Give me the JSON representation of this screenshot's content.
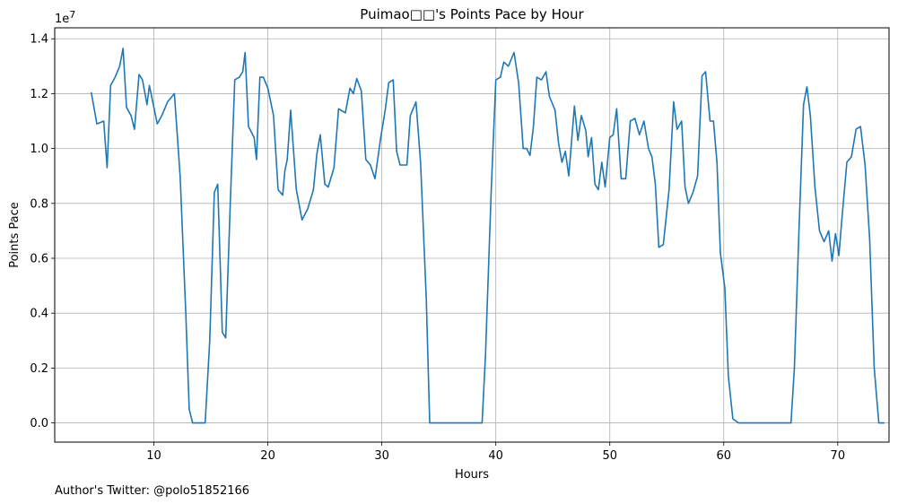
{
  "chart_data": {
    "type": "line",
    "title": "Puimao□□'s Points Pace by Hour",
    "xlabel": "Hours",
    "ylabel": "Points Pace",
    "y_offset_text": "1e7",
    "footnote": "Author's Twitter: @polo51852166",
    "xlim": [
      1.3,
      74.5
    ],
    "ylim": [
      -0.07,
      1.44
    ],
    "x_ticks": [
      10,
      20,
      30,
      40,
      50,
      60,
      70
    ],
    "y_ticks": [
      0.0,
      0.2,
      0.4,
      0.6,
      0.8,
      1.0,
      1.2,
      1.4
    ],
    "y_tick_labels": [
      "0.0",
      "0.2",
      "0.4",
      "0.6",
      "0.8",
      "1.0",
      "1.2",
      "1.4"
    ],
    "grid": true,
    "line_color": "#1f77b4",
    "series": [
      {
        "points": [
          [
            4.5,
            1.205
          ],
          [
            5.0,
            1.09
          ],
          [
            5.6,
            1.1
          ],
          [
            5.9,
            0.93
          ],
          [
            6.2,
            1.23
          ],
          [
            6.6,
            1.26
          ],
          [
            7.0,
            1.3
          ],
          [
            7.3,
            1.365
          ],
          [
            7.6,
            1.15
          ],
          [
            8.0,
            1.12
          ],
          [
            8.3,
            1.07
          ],
          [
            8.7,
            1.27
          ],
          [
            9.0,
            1.25
          ],
          [
            9.4,
            1.16
          ],
          [
            9.6,
            1.23
          ],
          [
            10.0,
            1.15
          ],
          [
            10.3,
            1.09
          ],
          [
            10.7,
            1.12
          ],
          [
            11.2,
            1.17
          ],
          [
            11.8,
            1.2
          ],
          [
            12.3,
            0.9
          ],
          [
            12.8,
            0.4
          ],
          [
            13.1,
            0.05
          ],
          [
            13.4,
            0.0
          ],
          [
            14.5,
            0.0
          ],
          [
            14.9,
            0.3
          ],
          [
            15.3,
            0.84
          ],
          [
            15.6,
            0.87
          ],
          [
            16.0,
            0.33
          ],
          [
            16.3,
            0.31
          ],
          [
            16.7,
            0.8
          ],
          [
            17.1,
            1.25
          ],
          [
            17.5,
            1.26
          ],
          [
            17.8,
            1.28
          ],
          [
            18.0,
            1.35
          ],
          [
            18.3,
            1.08
          ],
          [
            18.8,
            1.04
          ],
          [
            19.0,
            0.96
          ],
          [
            19.3,
            1.26
          ],
          [
            19.6,
            1.26
          ],
          [
            20.0,
            1.22
          ],
          [
            20.5,
            1.12
          ],
          [
            20.9,
            0.85
          ],
          [
            21.3,
            0.83
          ],
          [
            21.5,
            0.92
          ],
          [
            21.7,
            0.96
          ],
          [
            22.0,
            1.14
          ],
          [
            22.5,
            0.85
          ],
          [
            23.0,
            0.74
          ],
          [
            23.5,
            0.78
          ],
          [
            24.0,
            0.85
          ],
          [
            24.3,
            0.98
          ],
          [
            24.6,
            1.05
          ],
          [
            25.0,
            0.87
          ],
          [
            25.3,
            0.86
          ],
          [
            25.8,
            0.93
          ],
          [
            26.2,
            1.145
          ],
          [
            26.8,
            1.13
          ],
          [
            27.2,
            1.22
          ],
          [
            27.5,
            1.2
          ],
          [
            27.8,
            1.255
          ],
          [
            28.2,
            1.21
          ],
          [
            28.6,
            0.96
          ],
          [
            29.0,
            0.94
          ],
          [
            29.4,
            0.89
          ],
          [
            29.9,
            1.04
          ],
          [
            30.3,
            1.14
          ],
          [
            30.6,
            1.24
          ],
          [
            31.0,
            1.25
          ],
          [
            31.3,
            0.99
          ],
          [
            31.6,
            0.94
          ],
          [
            32.2,
            0.94
          ],
          [
            32.5,
            1.12
          ],
          [
            33.0,
            1.17
          ],
          [
            33.4,
            0.95
          ],
          [
            33.9,
            0.45
          ],
          [
            34.2,
            0.0
          ],
          [
            38.8,
            0.0
          ],
          [
            39.1,
            0.25
          ],
          [
            39.6,
            0.85
          ],
          [
            40.0,
            1.25
          ],
          [
            40.4,
            1.26
          ],
          [
            40.7,
            1.315
          ],
          [
            41.1,
            1.3
          ],
          [
            41.6,
            1.35
          ],
          [
            42.0,
            1.24
          ],
          [
            42.4,
            1.0
          ],
          [
            42.7,
            1.0
          ],
          [
            43.0,
            0.975
          ],
          [
            43.3,
            1.08
          ],
          [
            43.6,
            1.26
          ],
          [
            44.0,
            1.25
          ],
          [
            44.4,
            1.28
          ],
          [
            44.7,
            1.19
          ],
          [
            45.2,
            1.14
          ],
          [
            45.5,
            1.02
          ],
          [
            45.8,
            0.95
          ],
          [
            46.1,
            0.99
          ],
          [
            46.4,
            0.9
          ],
          [
            46.9,
            1.155
          ],
          [
            47.2,
            1.03
          ],
          [
            47.5,
            1.12
          ],
          [
            47.9,
            1.065
          ],
          [
            48.1,
            0.97
          ],
          [
            48.4,
            1.04
          ],
          [
            48.7,
            0.87
          ],
          [
            49.0,
            0.85
          ],
          [
            49.3,
            0.95
          ],
          [
            49.6,
            0.86
          ],
          [
            50.0,
            1.04
          ],
          [
            50.3,
            1.05
          ],
          [
            50.6,
            1.145
          ],
          [
            51.0,
            0.89
          ],
          [
            51.4,
            0.89
          ],
          [
            51.8,
            1.1
          ],
          [
            52.2,
            1.11
          ],
          [
            52.6,
            1.05
          ],
          [
            53.0,
            1.1
          ],
          [
            53.4,
            1.0
          ],
          [
            53.7,
            0.97
          ],
          [
            54.0,
            0.87
          ],
          [
            54.3,
            0.64
          ],
          [
            54.7,
            0.65
          ],
          [
            55.2,
            0.85
          ],
          [
            55.6,
            1.17
          ],
          [
            55.9,
            1.07
          ],
          [
            56.3,
            1.1
          ],
          [
            56.6,
            0.86
          ],
          [
            56.9,
            0.8
          ],
          [
            57.3,
            0.84
          ],
          [
            57.7,
            0.9
          ],
          [
            58.1,
            1.265
          ],
          [
            58.4,
            1.28
          ],
          [
            58.8,
            1.1
          ],
          [
            59.1,
            1.1
          ],
          [
            59.4,
            0.95
          ],
          [
            59.7,
            0.62
          ],
          [
            60.1,
            0.49
          ],
          [
            60.4,
            0.17
          ],
          [
            60.8,
            0.015
          ],
          [
            61.3,
            0.0
          ],
          [
            65.9,
            0.0
          ],
          [
            66.2,
            0.2
          ],
          [
            66.6,
            0.7
          ],
          [
            67.0,
            1.16
          ],
          [
            67.3,
            1.225
          ],
          [
            67.6,
            1.12
          ],
          [
            68.0,
            0.86
          ],
          [
            68.4,
            0.7
          ],
          [
            68.8,
            0.66
          ],
          [
            69.2,
            0.7
          ],
          [
            69.5,
            0.59
          ],
          [
            69.8,
            0.69
          ],
          [
            70.1,
            0.61
          ],
          [
            70.4,
            0.76
          ],
          [
            70.8,
            0.95
          ],
          [
            71.2,
            0.97
          ],
          [
            71.6,
            1.07
          ],
          [
            72.0,
            1.08
          ],
          [
            72.4,
            0.94
          ],
          [
            72.8,
            0.67
          ],
          [
            73.2,
            0.2
          ],
          [
            73.6,
            0.0
          ],
          [
            74.1,
            0.0
          ]
        ]
      }
    ]
  }
}
